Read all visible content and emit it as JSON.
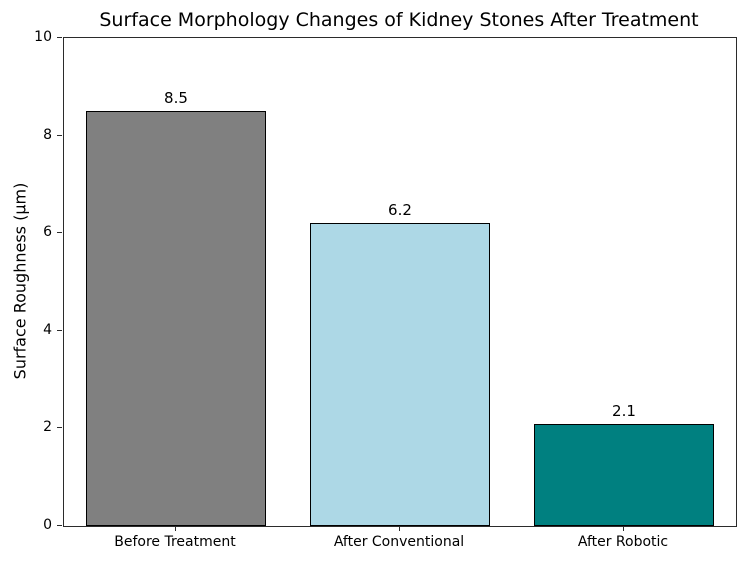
{
  "chart_data": {
    "type": "bar",
    "title": "Surface Morphology Changes of Kidney Stones After Treatment",
    "categories": [
      "Before Treatment",
      "After Conventional",
      "After Robotic"
    ],
    "values": [
      8.5,
      6.2,
      2.1
    ],
    "value_labels": [
      "8.5",
      "6.2",
      "2.1"
    ],
    "bar_colors": [
      "#808080",
      "#ADD8E6",
      "#008080"
    ],
    "bar_edge_color": "#000000",
    "xlabel": "",
    "ylabel": "Surface Roughness (µm)",
    "ylim": [
      0,
      10
    ],
    "yticks": [
      0,
      2,
      4,
      6,
      8,
      10
    ],
    "grid": false,
    "legend_position": "none",
    "bar_width_fraction": 0.8
  }
}
